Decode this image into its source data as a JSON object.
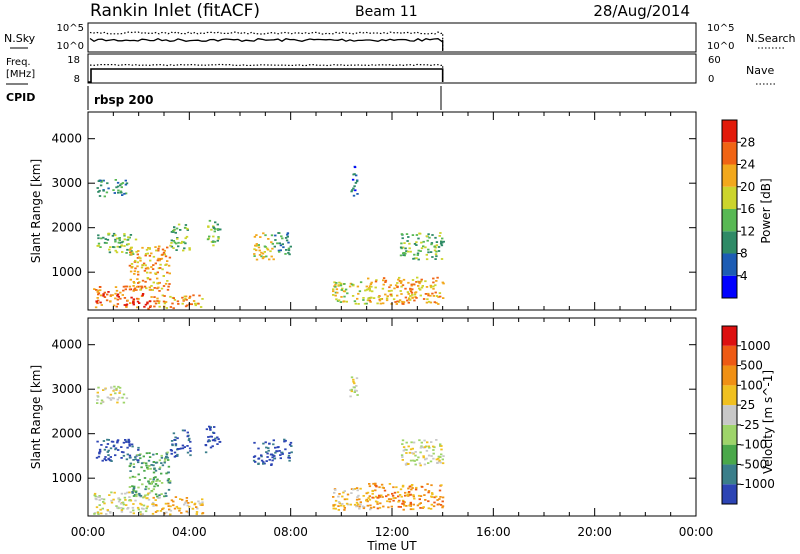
{
  "header": {
    "title": "Rankin Inlet (fitACF)",
    "beam": "Beam 11",
    "date": "28/Aug/2014"
  },
  "top_panels": {
    "nsky": {
      "left_label": "N.Sky",
      "left_ticks": [
        "10^5",
        "10^0"
      ],
      "right_ticks": [
        "10^5",
        "10^0"
      ],
      "right_label": "N.Search"
    },
    "freq": {
      "left_label_line1": "Freq.",
      "left_label_line2": "[MHz]",
      "left_ticks": [
        "18",
        "8"
      ],
      "right_ticks": [
        "60",
        "0"
      ],
      "right_label": "Nave"
    },
    "cpid": {
      "label": "CPID",
      "value": "rbsp 200"
    }
  },
  "chart_data": [
    {
      "type": "heatmap",
      "panel": "power",
      "xlabel": "",
      "ylabel": "Slant Range [km]",
      "x_tick_labels": [
        "00:00",
        "04:00",
        "08:00",
        "12:00",
        "16:00",
        "20:00",
        "00:00"
      ],
      "xlim_hours": [
        0,
        24
      ],
      "ylim": [
        150,
        4600
      ],
      "y_ticks": [
        1000,
        2000,
        3000,
        4000
      ],
      "data_end_hour": 14.0,
      "colorbar": {
        "label": "Power [dB]",
        "tick_labels": [
          "4",
          "8",
          "12",
          "16",
          "20",
          "24",
          "28"
        ],
        "colors": [
          "#0000ff",
          "#1c5cb4",
          "#2e8a66",
          "#58b854",
          "#ccd42c",
          "#f2a81c",
          "#f06414",
          "#e21a0a"
        ]
      },
      "regions": [
        {
          "t0": 0.3,
          "t1": 1.5,
          "r0": 2700,
          "r1": 3100,
          "level": 2
        },
        {
          "t0": 0.3,
          "t1": 1.9,
          "r0": 1400,
          "r1": 1900,
          "level": 3
        },
        {
          "t0": 0.2,
          "t1": 2.5,
          "r0": 200,
          "r1": 700,
          "level": 6
        },
        {
          "t0": 2.5,
          "t1": 4.5,
          "r0": 200,
          "r1": 500,
          "level": 5
        },
        {
          "t0": 1.6,
          "t1": 3.2,
          "r0": 600,
          "r1": 1600,
          "level": 5
        },
        {
          "t0": 3.2,
          "t1": 4.0,
          "r0": 1500,
          "r1": 2100,
          "level": 3
        },
        {
          "t0": 4.6,
          "t1": 5.2,
          "r0": 1600,
          "r1": 2200,
          "level": 3
        },
        {
          "t0": 6.5,
          "t1": 7.3,
          "r0": 1300,
          "r1": 1900,
          "level": 4
        },
        {
          "t0": 7.3,
          "t1": 8.0,
          "r0": 1400,
          "r1": 1900,
          "level": 2
        },
        {
          "t0": 10.3,
          "t1": 10.6,
          "r0": 2700,
          "r1": 3400,
          "level": 1
        },
        {
          "t0": 9.6,
          "t1": 11.2,
          "r0": 300,
          "r1": 800,
          "level": 4
        },
        {
          "t0": 11.0,
          "t1": 14.0,
          "r0": 300,
          "r1": 900,
          "level": 5
        },
        {
          "t0": 12.3,
          "t1": 14.0,
          "r0": 1300,
          "r1": 1900,
          "level": 3
        }
      ]
    },
    {
      "type": "heatmap",
      "panel": "velocity",
      "xlabel": "Time UT",
      "ylabel": "Slant Range [km]",
      "x_tick_labels": [
        "00:00",
        "04:00",
        "08:00",
        "12:00",
        "16:00",
        "20:00",
        "00:00"
      ],
      "xlim_hours": [
        0,
        24
      ],
      "ylim": [
        150,
        4600
      ],
      "y_ticks": [
        1000,
        2000,
        3000,
        4000
      ],
      "data_end_hour": 14.0,
      "colorbar": {
        "label": "Velocity [m s^-1]",
        "tick_labels": [
          "1000",
          "500",
          "100",
          "25",
          "-25",
          "-100",
          "-500",
          "-1000"
        ],
        "colors": [
          "#2c44b4",
          "#3a7e8a",
          "#4aa84a",
          "#9ed46a",
          "#c8c8c8",
          "#f0c020",
          "#f09014",
          "#ee5a14",
          "#dd1010"
        ]
      },
      "regions": [
        {
          "t0": 0.3,
          "t1": 1.5,
          "r0": 2700,
          "r1": 3100,
          "level": 4
        },
        {
          "t0": 0.3,
          "t1": 2.0,
          "r0": 1400,
          "r1": 1900,
          "level": 0
        },
        {
          "t0": 0.2,
          "t1": 2.5,
          "r0": 200,
          "r1": 700,
          "level": 4
        },
        {
          "t0": 2.5,
          "t1": 4.5,
          "r0": 200,
          "r1": 600,
          "level": 5
        },
        {
          "t0": 1.6,
          "t1": 3.2,
          "r0": 600,
          "r1": 1600,
          "level": 2
        },
        {
          "t0": 3.2,
          "t1": 4.0,
          "r0": 1500,
          "r1": 2100,
          "level": 0
        },
        {
          "t0": 4.6,
          "t1": 5.2,
          "r0": 1600,
          "r1": 2200,
          "level": 0
        },
        {
          "t0": 6.5,
          "t1": 7.3,
          "r0": 1300,
          "r1": 1900,
          "level": 0
        },
        {
          "t0": 7.3,
          "t1": 8.0,
          "r0": 1400,
          "r1": 1900,
          "level": 0
        },
        {
          "t0": 10.3,
          "t1": 10.6,
          "r0": 2700,
          "r1": 3400,
          "level": 4
        },
        {
          "t0": 9.6,
          "t1": 11.2,
          "r0": 300,
          "r1": 800,
          "level": 5
        },
        {
          "t0": 11.0,
          "t1": 14.0,
          "r0": 300,
          "r1": 900,
          "level": 6
        },
        {
          "t0": 12.3,
          "t1": 14.0,
          "r0": 1300,
          "r1": 1900,
          "level": 4
        }
      ]
    }
  ]
}
